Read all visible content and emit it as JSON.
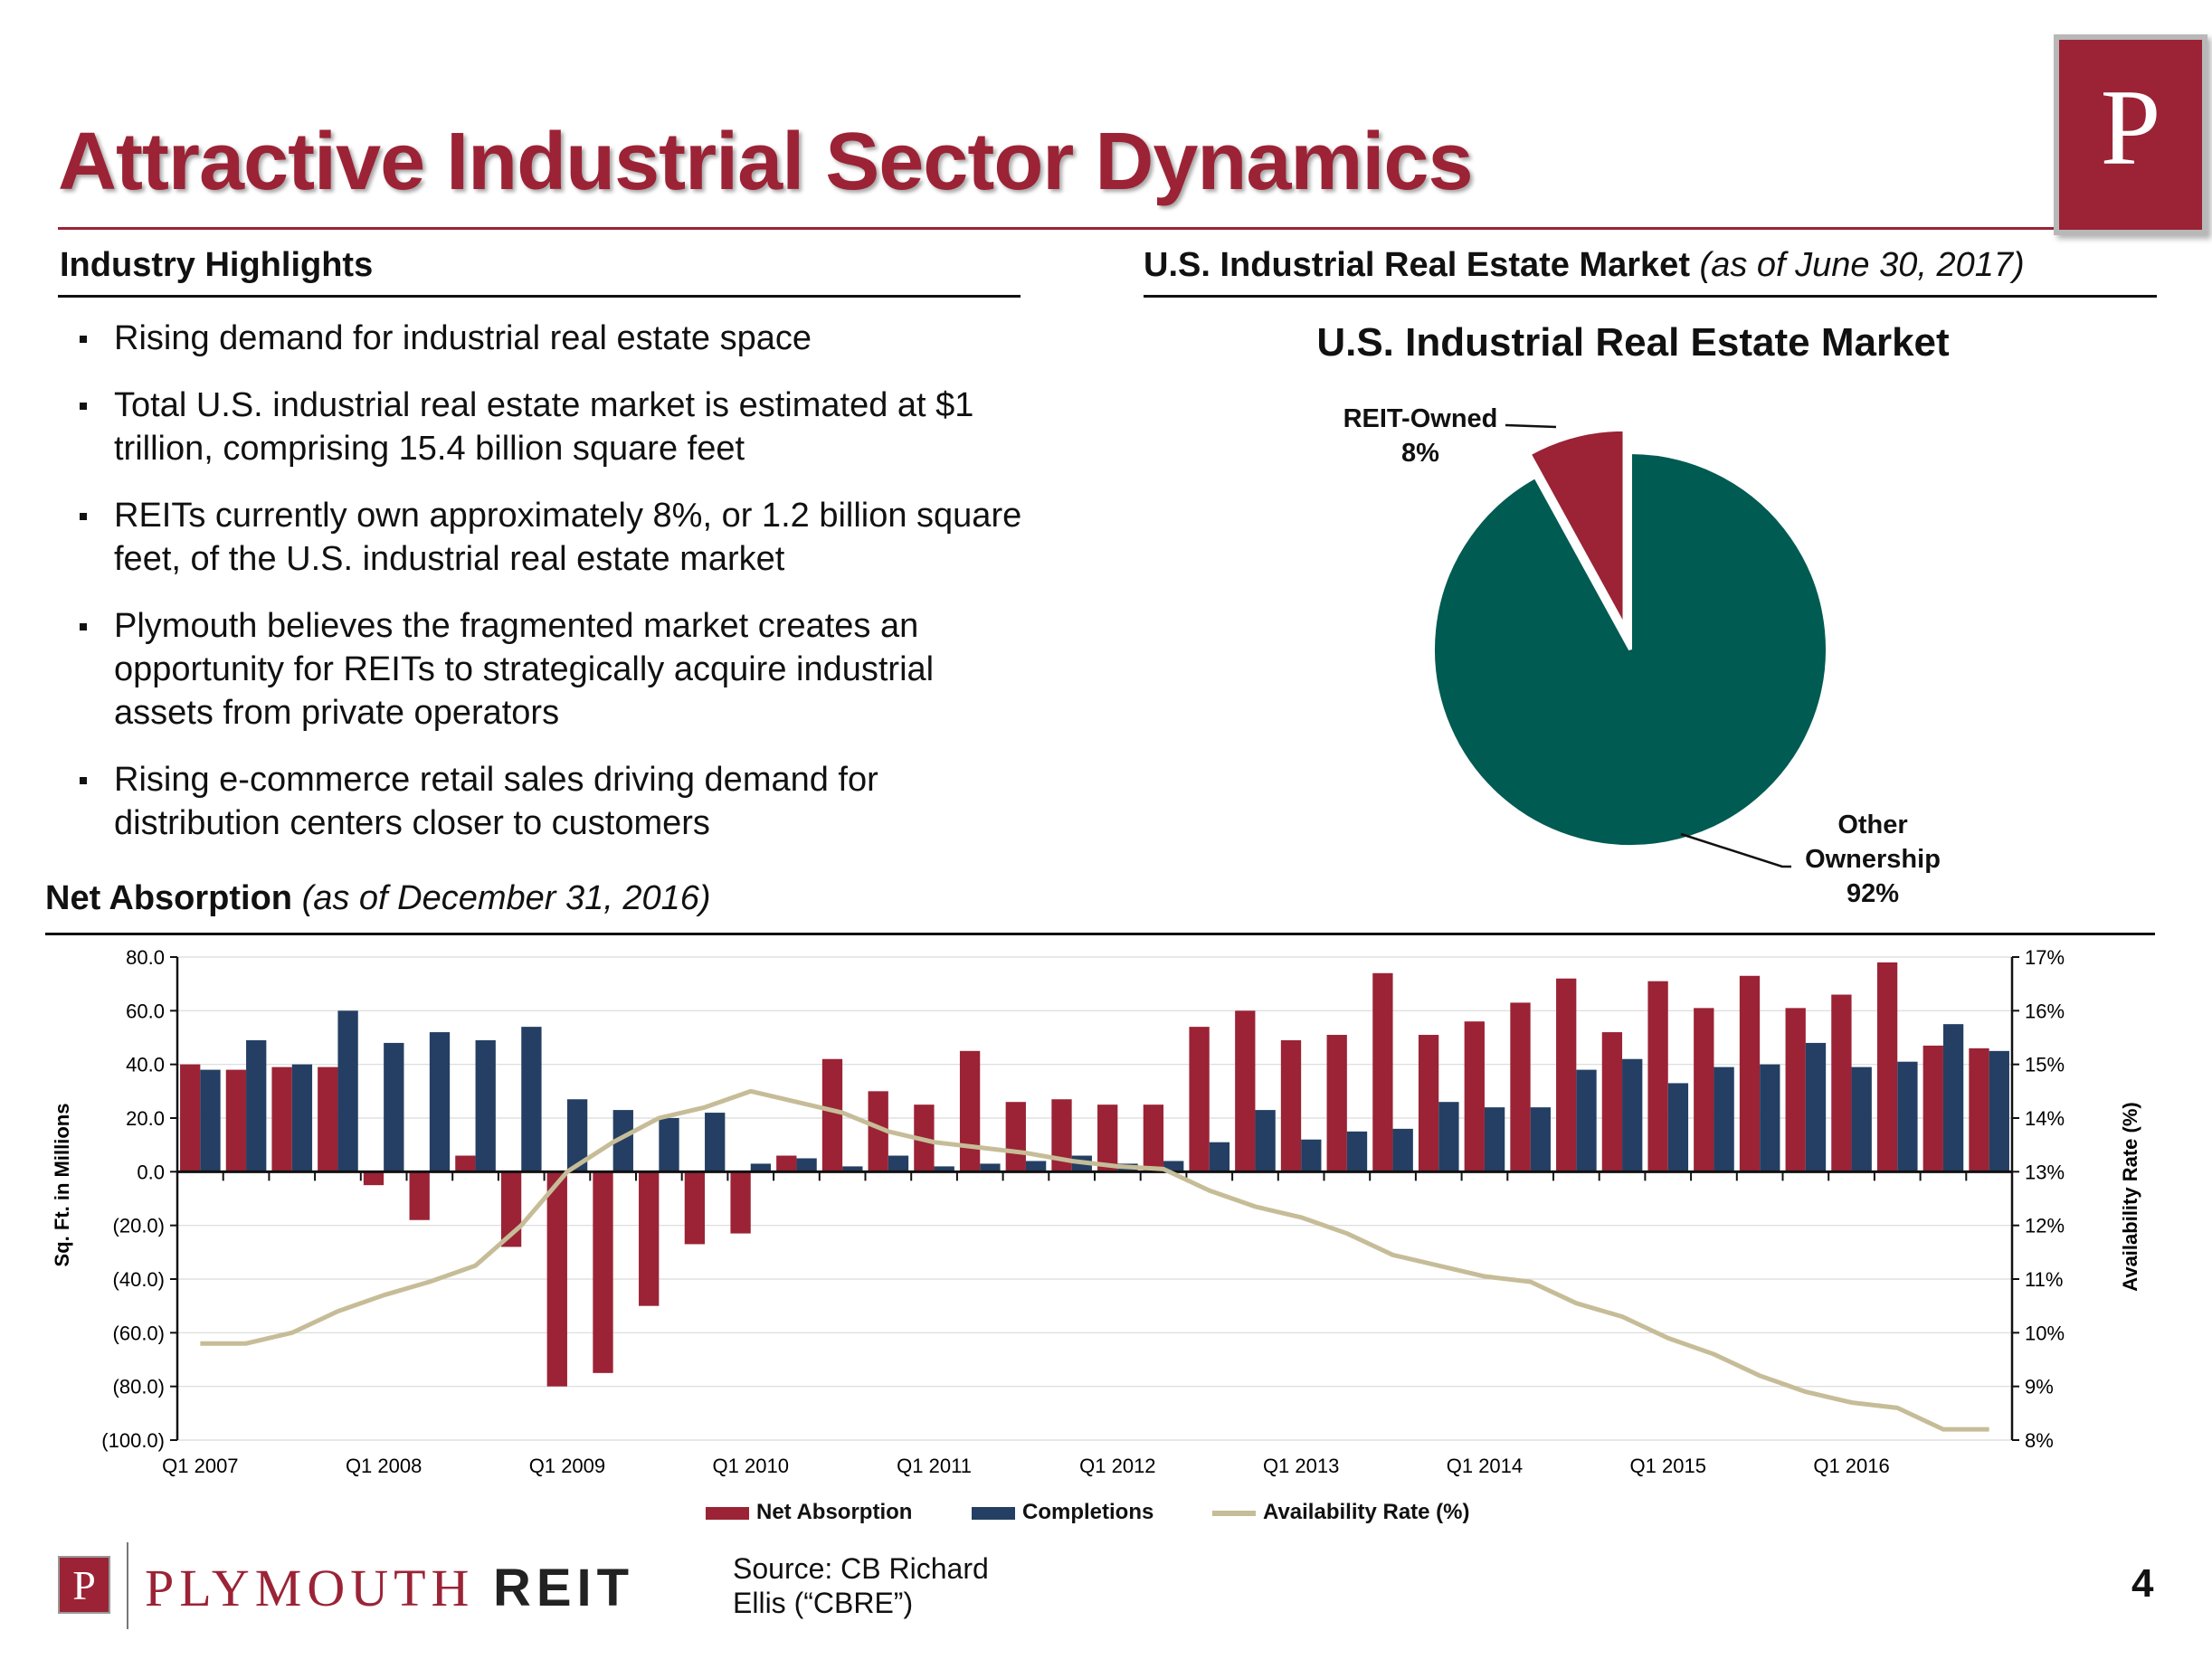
{
  "slide": {
    "title": "Attractive Industrial Sector Dynamics",
    "logo_letter": "P",
    "page_number": "4"
  },
  "highlights": {
    "heading": "Industry Highlights",
    "bullets": [
      "Rising demand for industrial real estate space",
      "Total U.S. industrial real estate market is estimated at $1 trillion, comprising 15.4 billion square feet",
      "REITs currently own approximately 8%, or 1.2 billion square feet, of the U.S. industrial real estate market",
      "Plymouth believes the fragmented market creates an opportunity for REITs to strategically acquire industrial assets from private operators",
      "Rising e-commerce retail sales driving demand for distribution centers closer to customers"
    ]
  },
  "market": {
    "heading": "U.S. Industrial Real Estate Market",
    "heading_sub": "(as of June 30, 2017)"
  },
  "absorption": {
    "heading": "Net Absorption",
    "heading_sub": "(as of December 31, 2016)"
  },
  "footer": {
    "brand_p": "P",
    "brand_word": "PLYMOUTH",
    "brand_reit": "REIT",
    "source": "Source: CB Richard Ellis (“CBRE”)"
  },
  "chart_data": [
    {
      "type": "pie",
      "title": "U.S. Industrial Real Estate Market",
      "slices": [
        {
          "label": "REIT-Owned",
          "value": 8,
          "value_label": "8%",
          "color": "#9b2335",
          "exploded": true
        },
        {
          "label": "Other Ownership",
          "value": 92,
          "value_label": "92%",
          "color": "#005b52"
        }
      ]
    },
    {
      "type": "bar",
      "ylabel": "Sq. Ft. in Millions",
      "y2label": "Availability Rate (%)",
      "ylim": [
        -100,
        80
      ],
      "y_ticks": [
        "80.0",
        "60.0",
        "40.0",
        "20.0",
        "0.0",
        "(20.0)",
        "(40.0)",
        "(60.0)",
        "(80.0)",
        "(100.0)"
      ],
      "y2lim": [
        8,
        17
      ],
      "y2_ticks": [
        "17%",
        "16%",
        "15%",
        "14%",
        "13%",
        "12%",
        "11%",
        "10%",
        "9%",
        "8%"
      ],
      "x_tick_labels": [
        "Q1 2007",
        "Q1 2008",
        "Q1 2009",
        "Q1 2010",
        "Q1 2011",
        "Q1 2012",
        "Q1 2013",
        "Q1 2014",
        "Q1 2015",
        "Q1 2016"
      ],
      "categories": [
        "Q1 2007",
        "Q2 2007",
        "Q3 2007",
        "Q4 2007",
        "Q1 2008",
        "Q2 2008",
        "Q3 2008",
        "Q4 2008",
        "Q1 2009",
        "Q2 2009",
        "Q3 2009",
        "Q4 2009",
        "Q1 2010",
        "Q2 2010",
        "Q3 2010",
        "Q4 2010",
        "Q1 2011",
        "Q2 2011",
        "Q3 2011",
        "Q4 2011",
        "Q1 2012",
        "Q2 2012",
        "Q3 2012",
        "Q4 2012",
        "Q1 2013",
        "Q2 2013",
        "Q3 2013",
        "Q4 2013",
        "Q1 2014",
        "Q2 2014",
        "Q3 2014",
        "Q4 2014",
        "Q1 2015",
        "Q2 2015",
        "Q3 2015",
        "Q4 2015",
        "Q1 2016",
        "Q2 2016",
        "Q3 2016",
        "Q4 2016"
      ],
      "series": [
        {
          "name": "Net Absorption",
          "kind": "bar",
          "axis": "left",
          "color": "#9b2335",
          "values": [
            40,
            38,
            39,
            39,
            -5,
            -18,
            6,
            -28,
            -80,
            -75,
            -50,
            -27,
            -23,
            6,
            42,
            30,
            25,
            45,
            26,
            27,
            25,
            25,
            54,
            60,
            49,
            51,
            74,
            51,
            56,
            63,
            72,
            52,
            71,
            61,
            73,
            61,
            66,
            78,
            47,
            46
          ]
        },
        {
          "name": "Completions",
          "kind": "bar",
          "axis": "left",
          "color": "#243f63",
          "values": [
            38,
            49,
            40,
            60,
            48,
            52,
            49,
            54,
            27,
            23,
            20,
            22,
            3,
            5,
            2,
            6,
            2,
            3,
            4,
            6,
            3,
            4,
            11,
            23,
            12,
            15,
            16,
            26,
            24,
            24,
            38,
            42,
            33,
            39,
            40,
            48,
            39,
            41,
            55,
            45
          ]
        },
        {
          "name": "Availability Rate (%)",
          "kind": "line",
          "axis": "right",
          "color": "#c6bd98",
          "values": [
            9.8,
            9.8,
            10.0,
            10.4,
            10.7,
            10.95,
            11.25,
            12.0,
            13.0,
            13.55,
            14.0,
            14.2,
            14.5,
            14.3,
            14.1,
            13.75,
            13.55,
            13.45,
            13.35,
            13.2,
            13.1,
            13.05,
            12.65,
            12.35,
            12.15,
            11.85,
            11.45,
            11.25,
            11.05,
            10.95,
            10.55,
            10.3,
            9.9,
            9.6,
            9.2,
            8.9,
            8.7,
            8.6,
            8.2,
            8.2
          ]
        }
      ],
      "legend": "bottom-center"
    }
  ]
}
